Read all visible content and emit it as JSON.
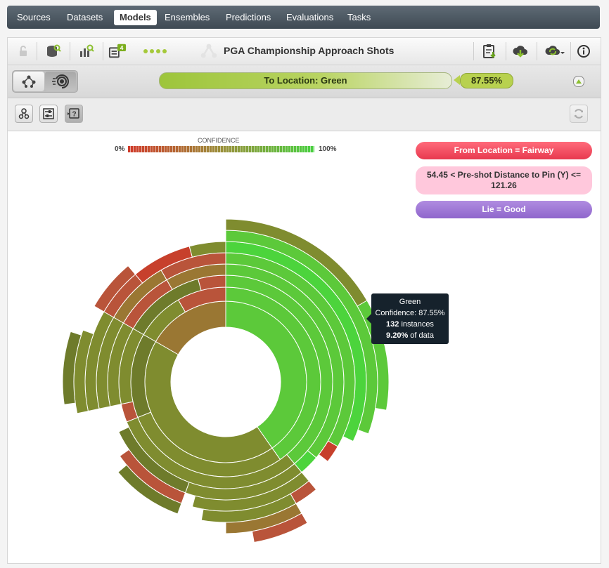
{
  "nav": {
    "items": [
      {
        "label": "Sources",
        "active": false
      },
      {
        "label": "Datasets",
        "active": false
      },
      {
        "label": "Models",
        "active": true
      },
      {
        "label": "Ensembles",
        "active": false
      },
      {
        "label": "Predictions",
        "active": false
      },
      {
        "label": "Evaluations",
        "active": false
      },
      {
        "label": "Tasks",
        "active": false
      }
    ]
  },
  "toolbar": {
    "title": "PGA Championship Approach Shots",
    "badge_count": "4",
    "icons": [
      "lock-icon",
      "dataset-search-icon",
      "model-search-icon",
      "evaluation-icon",
      "dots-icon",
      "model-tree-icon",
      "clipboard-download-icon",
      "cloud-download-icon",
      "cloud-refresh-icon",
      "info-icon"
    ]
  },
  "prediction": {
    "label": "To Location: Green",
    "confidence": "87.55%"
  },
  "legend": {
    "title": "CONFIDENCE",
    "low": "0%",
    "high": "100%",
    "colors": {
      "low": "#d03a2a",
      "mid": "#9a8f3a",
      "high": "#48d040"
    }
  },
  "rules": [
    {
      "text": "From Location = Fairway",
      "color": "#e8394f"
    },
    {
      "text": "54.45 < Pre-shot Distance to Pin (Y) <= 121.26",
      "color": "#ffc8dc"
    },
    {
      "text": "Lie = Good",
      "color": "#8f66cc"
    }
  ],
  "tooltip": {
    "title": "Green",
    "confidence_line": "Confidence: 87.55%",
    "instances_count": "132",
    "instances_suffix": " instances",
    "data_pct": "9.20%",
    "data_suffix": " of data"
  },
  "palette": {
    "green": "#5cc93a",
    "bright_green": "#4cd43c",
    "olive": "#7f8c2f",
    "olive_dark": "#6e7b2b",
    "brown": "#9a7733",
    "red_brown": "#b9543a",
    "red": "#c7402c"
  }
}
